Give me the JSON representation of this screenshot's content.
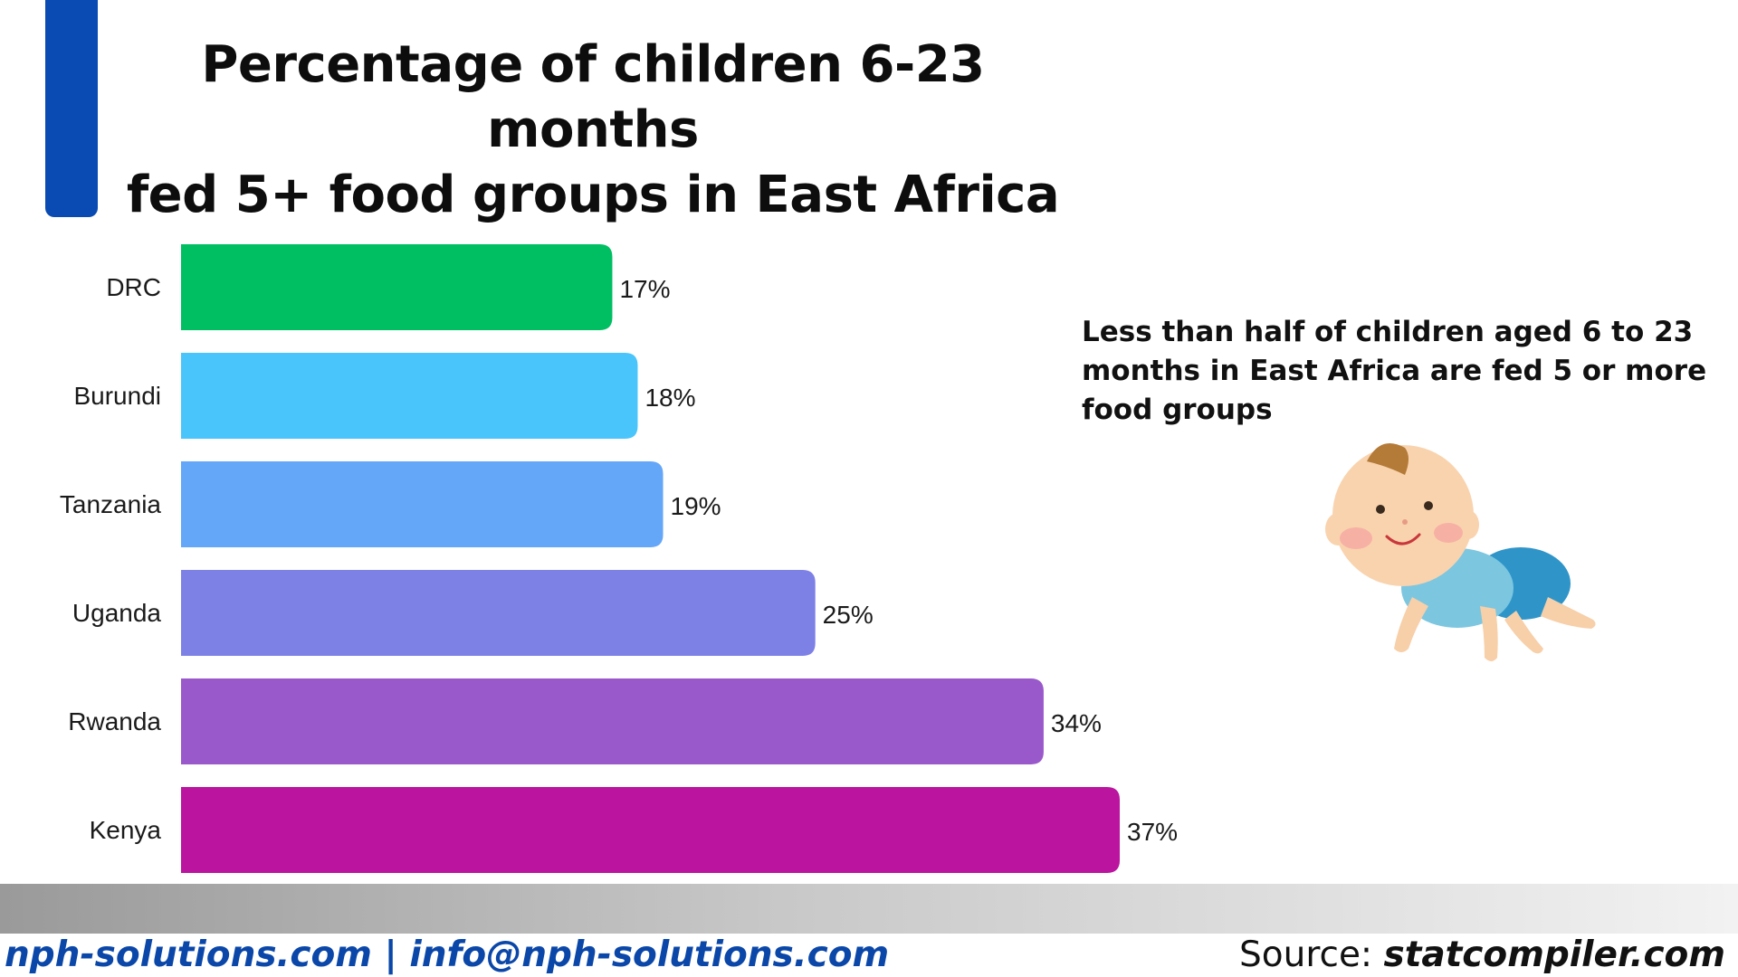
{
  "title": {
    "line1": "Percentage of children 6-23 months",
    "line2": "fed 5+ food groups in East Africa"
  },
  "annotation": "Less than half of children aged 6 to 23 months in East Africa are fed 5 or more food groups",
  "footer": {
    "contact": "nph-solutions.com | info@nph-solutions.com",
    "source_label": "Source: ",
    "source_site": "statcompiler.com"
  },
  "colors": {
    "accent": "#0a4bb3",
    "footer_text": "#0a47a8"
  },
  "illustration": "crawling-baby",
  "chart_data": {
    "type": "bar",
    "orientation": "horizontal",
    "categories": [
      "DRC",
      "Burundi",
      "Tanzania",
      "Uganda",
      "Rwanda",
      "Kenya"
    ],
    "values": [
      17,
      18,
      19,
      25,
      34,
      37
    ],
    "value_labels": [
      "17%",
      "18%",
      "19%",
      "25%",
      "34%",
      "37%"
    ],
    "unit": "%",
    "bar_colors": [
      "#00bf63",
      "#4ac5fb",
      "#64a6f8",
      "#7d81e6",
      "#9a59cb",
      "#bb149f"
    ],
    "xlim": [
      0,
      37
    ],
    "grid": false,
    "legend": "none"
  }
}
